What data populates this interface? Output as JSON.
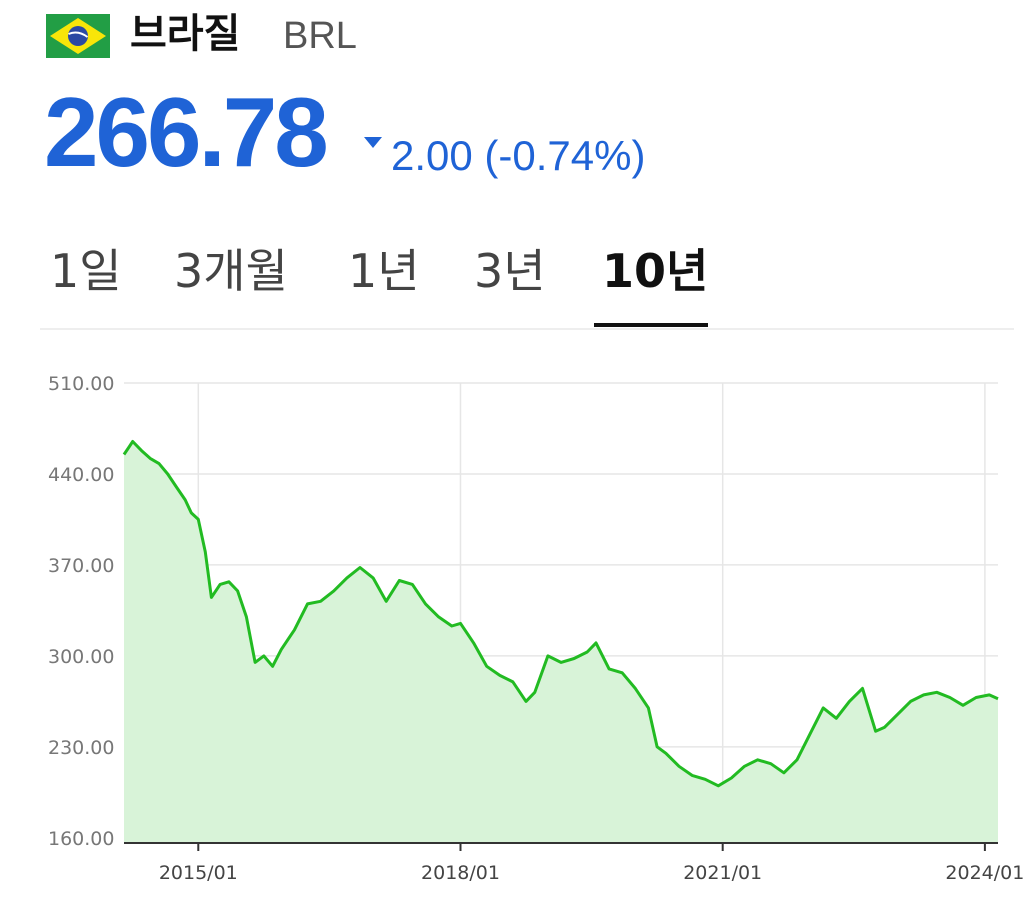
{
  "header": {
    "flag_icon": "brazil-flag-icon",
    "currency_name": "브라질",
    "currency_code": "BRL",
    "price": "266.78",
    "change_direction": "down",
    "change_text": "2.00 (-0.74%)",
    "accent_color": "#1f63d6"
  },
  "tabs": [
    {
      "label": "1일",
      "active": false
    },
    {
      "label": "3개월",
      "active": false
    },
    {
      "label": "1년",
      "active": false
    },
    {
      "label": "3년",
      "active": false
    },
    {
      "label": "10년",
      "active": true
    }
  ],
  "chart_data": {
    "type": "area",
    "x_tick_labels": [
      "2015/01",
      "2018/01",
      "2021/01",
      "2024/01"
    ],
    "x_ticks": [
      2015.0,
      2018.0,
      2021.0,
      2024.0
    ],
    "y_tick_labels": [
      "510.00",
      "440.00",
      "370.00",
      "300.00",
      "230.00",
      "160.00"
    ],
    "y_ticks": [
      510,
      440,
      370,
      300,
      230,
      160
    ],
    "xlim": [
      2014.15,
      2024.15
    ],
    "ylim": [
      156,
      510
    ],
    "grid": true,
    "line_color": "#22bb22",
    "fill_color": "#d8f3d8",
    "series": [
      {
        "x": [
          2014.15,
          2014.25,
          2014.35,
          2014.45,
          2014.55,
          2014.65,
          2014.75,
          2014.85,
          2014.92,
          2015.0,
          2015.08,
          2015.15,
          2015.25,
          2015.35,
          2015.45,
          2015.55,
          2015.65,
          2015.75,
          2015.85,
          2015.95,
          2016.1,
          2016.25,
          2016.4,
          2016.55,
          2016.7,
          2016.85,
          2017.0,
          2017.15,
          2017.3,
          2017.45,
          2017.6,
          2017.75,
          2017.9,
          2018.0,
          2018.15,
          2018.3,
          2018.45,
          2018.6,
          2018.75,
          2018.85,
          2019.0,
          2019.15,
          2019.3,
          2019.45,
          2019.55,
          2019.7,
          2019.85,
          2020.0,
          2020.15,
          2020.25,
          2020.35,
          2020.5,
          2020.65,
          2020.8,
          2020.95,
          2021.1,
          2021.25,
          2021.4,
          2021.55,
          2021.7,
          2021.85,
          2022.0,
          2022.15,
          2022.3,
          2022.45,
          2022.6,
          2022.75,
          2022.85,
          2023.0,
          2023.15,
          2023.3,
          2023.45,
          2023.6,
          2023.75,
          2023.9,
          2024.05,
          2024.15
        ],
        "values": [
          455,
          465,
          458,
          452,
          448,
          440,
          430,
          420,
          410,
          405,
          380,
          345,
          355,
          357,
          350,
          330,
          295,
          300,
          292,
          305,
          320,
          340,
          342,
          350,
          360,
          368,
          360,
          342,
          358,
          355,
          340,
          330,
          323,
          325,
          310,
          292,
          285,
          280,
          265,
          272,
          300,
          295,
          298,
          303,
          310,
          290,
          287,
          275,
          260,
          230,
          225,
          215,
          208,
          205,
          200,
          206,
          215,
          220,
          217,
          210,
          220,
          240,
          260,
          252,
          265,
          275,
          242,
          245,
          255,
          265,
          270,
          272,
          268,
          262,
          268,
          270,
          267
        ]
      }
    ]
  }
}
